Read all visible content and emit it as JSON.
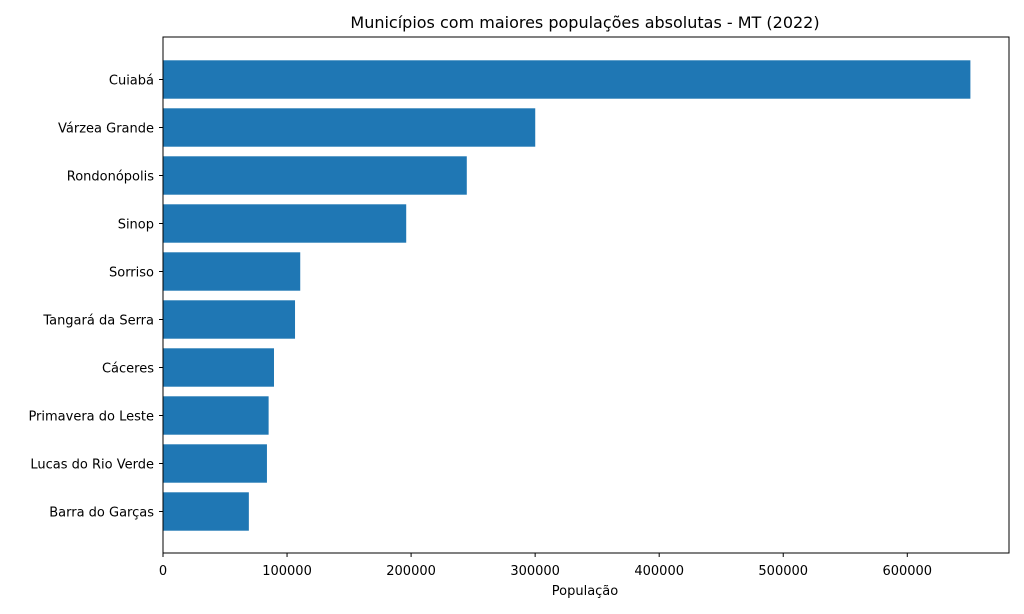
{
  "chart_data": {
    "type": "bar",
    "orientation": "horizontal",
    "title": "Municípios com maiores populações absolutas - MT (2022)",
    "xlabel": "População",
    "ylabel": "",
    "categories": [
      "Cuiabá",
      "Várzea Grande",
      "Rondonópolis",
      "Sinop",
      "Sorriso",
      "Tangará da Serra",
      "Cáceres",
      "Primavera do Leste",
      "Lucas do Rio Verde",
      "Barra do Garças"
    ],
    "values": [
      650877,
      300078,
      244897,
      196067,
      110635,
      106434,
      89478,
      85146,
      83798,
      69210
    ],
    "xlim": [
      0,
      682000
    ],
    "xticks": [
      0,
      100000,
      200000,
      300000,
      400000,
      500000,
      600000
    ],
    "bar_color": "#1f77b4",
    "grid": false,
    "legend": "none"
  }
}
